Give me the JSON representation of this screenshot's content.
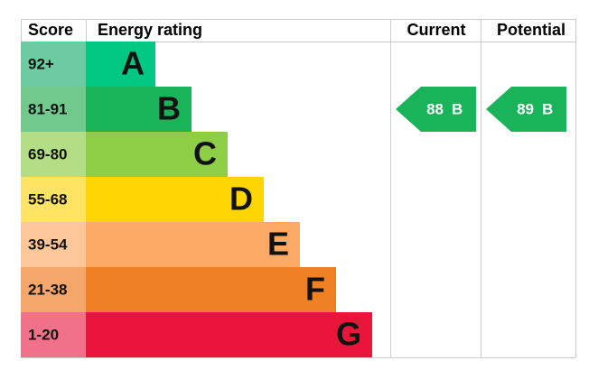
{
  "header": {
    "score": "Score",
    "rating": "Energy rating",
    "current": "Current",
    "potential": "Potential"
  },
  "bands": [
    {
      "score": "92+",
      "letter": "A",
      "color": "#00c781",
      "score_color": "#6ccba0"
    },
    {
      "score": "81-91",
      "letter": "B",
      "color": "#19b459",
      "score_color": "#72c98e"
    },
    {
      "score": "69-80",
      "letter": "C",
      "color": "#8dce46",
      "score_color": "#b4de86"
    },
    {
      "score": "55-68",
      "letter": "D",
      "color": "#ffd500",
      "score_color": "#ffe464"
    },
    {
      "score": "39-54",
      "letter": "E",
      "color": "#fcaa65",
      "score_color": "#fdc79a"
    },
    {
      "score": "21-38",
      "letter": "F",
      "color": "#ef8023",
      "score_color": "#f4a66b"
    },
    {
      "score": "1-20",
      "letter": "G",
      "color": "#e9153b",
      "score_color": "#f07189"
    }
  ],
  "current": {
    "value": 88,
    "letter": "B"
  },
  "potential": {
    "value": 89,
    "letter": "B"
  }
}
